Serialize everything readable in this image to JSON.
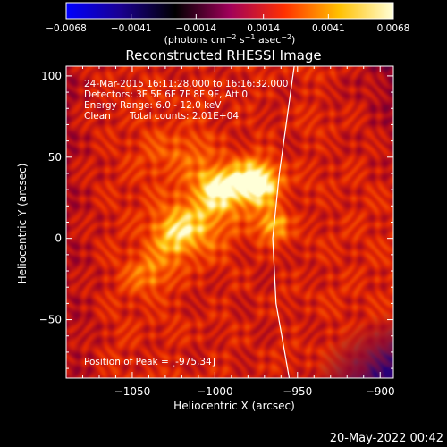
{
  "chart_data": {
    "type": "heatmap",
    "title": "Reconstructed RHESSI Image",
    "xlabel": "Heliocentric X (arcsec)",
    "ylabel": "Heliocentric Y (arcsec)",
    "xlim": [
      -1090,
      -892
    ],
    "ylim": [
      -86,
      106
    ],
    "x_ticks": [
      -1050,
      -1000,
      -950,
      -900
    ],
    "y_ticks": [
      -50,
      0,
      50,
      100
    ],
    "x_tick_labels": [
      "−1050",
      "−1000",
      "−950",
      "−900"
    ],
    "y_tick_labels": [
      "−50",
      "0",
      "50",
      "100"
    ],
    "colorbar": {
      "range": [
        -0.0068,
        0.0068
      ],
      "ticks": [
        -0.0068,
        -0.0041,
        -0.0014,
        0.0014,
        0.0041,
        0.0068
      ],
      "tick_labels": [
        "−0.0068",
        "−0.0041",
        "−0.0014",
        "0.0014",
        "0.0041",
        "0.0068"
      ],
      "unit_base": "(photons cm",
      "unit_exp1": "−2",
      "unit_mid1": " s",
      "unit_exp2": "−1",
      "unit_mid2": " asec",
      "unit_exp3": "−2",
      "unit_end": ")",
      "colormap": [
        "#0000ff",
        "#1a0090",
        "#000000",
        "#a0005a",
        "#ff3000",
        "#ffc000",
        "#ffffd8"
      ]
    },
    "annotations": {
      "time_range": "24-Mar-2015 16:11:28.000 to 16:16:32.000",
      "detectors": "Detectors: 3F 5F 6F 7F 8F 9F, Att 0",
      "energy_range": "Energy Range: 6.0 - 12.0 keV",
      "clean_label": "Clean",
      "total_counts": "Total counts: 2.01E+04",
      "peak_position": "Position of Peak = [-975,34]"
    },
    "peak": {
      "x": -975,
      "y": 34
    },
    "limb_line": [
      [
        -952,
        106
      ],
      [
        -961,
        40
      ],
      [
        -965,
        0
      ],
      [
        -963,
        -40
      ],
      [
        -955,
        -86
      ]
    ],
    "sources": [
      {
        "x": -975,
        "y": 34,
        "sigma": 10,
        "amp": 1.0
      },
      {
        "x": -997,
        "y": 32,
        "sigma": 9,
        "amp": 0.7
      },
      {
        "x": -965,
        "y": 8,
        "sigma": 7,
        "amp": 0.6
      },
      {
        "x": -1025,
        "y": 2,
        "sigma": 10,
        "amp": 0.55
      },
      {
        "x": -1006,
        "y": 10,
        "sigma": 14,
        "amp": 0.45
      },
      {
        "x": -1040,
        "y": -22,
        "sigma": 10,
        "amp": 0.35
      },
      {
        "x": -1020,
        "y": 50,
        "sigma": 16,
        "amp": 0.25
      }
    ]
  },
  "footer": {
    "date": "20-May-2022 00:42"
  }
}
